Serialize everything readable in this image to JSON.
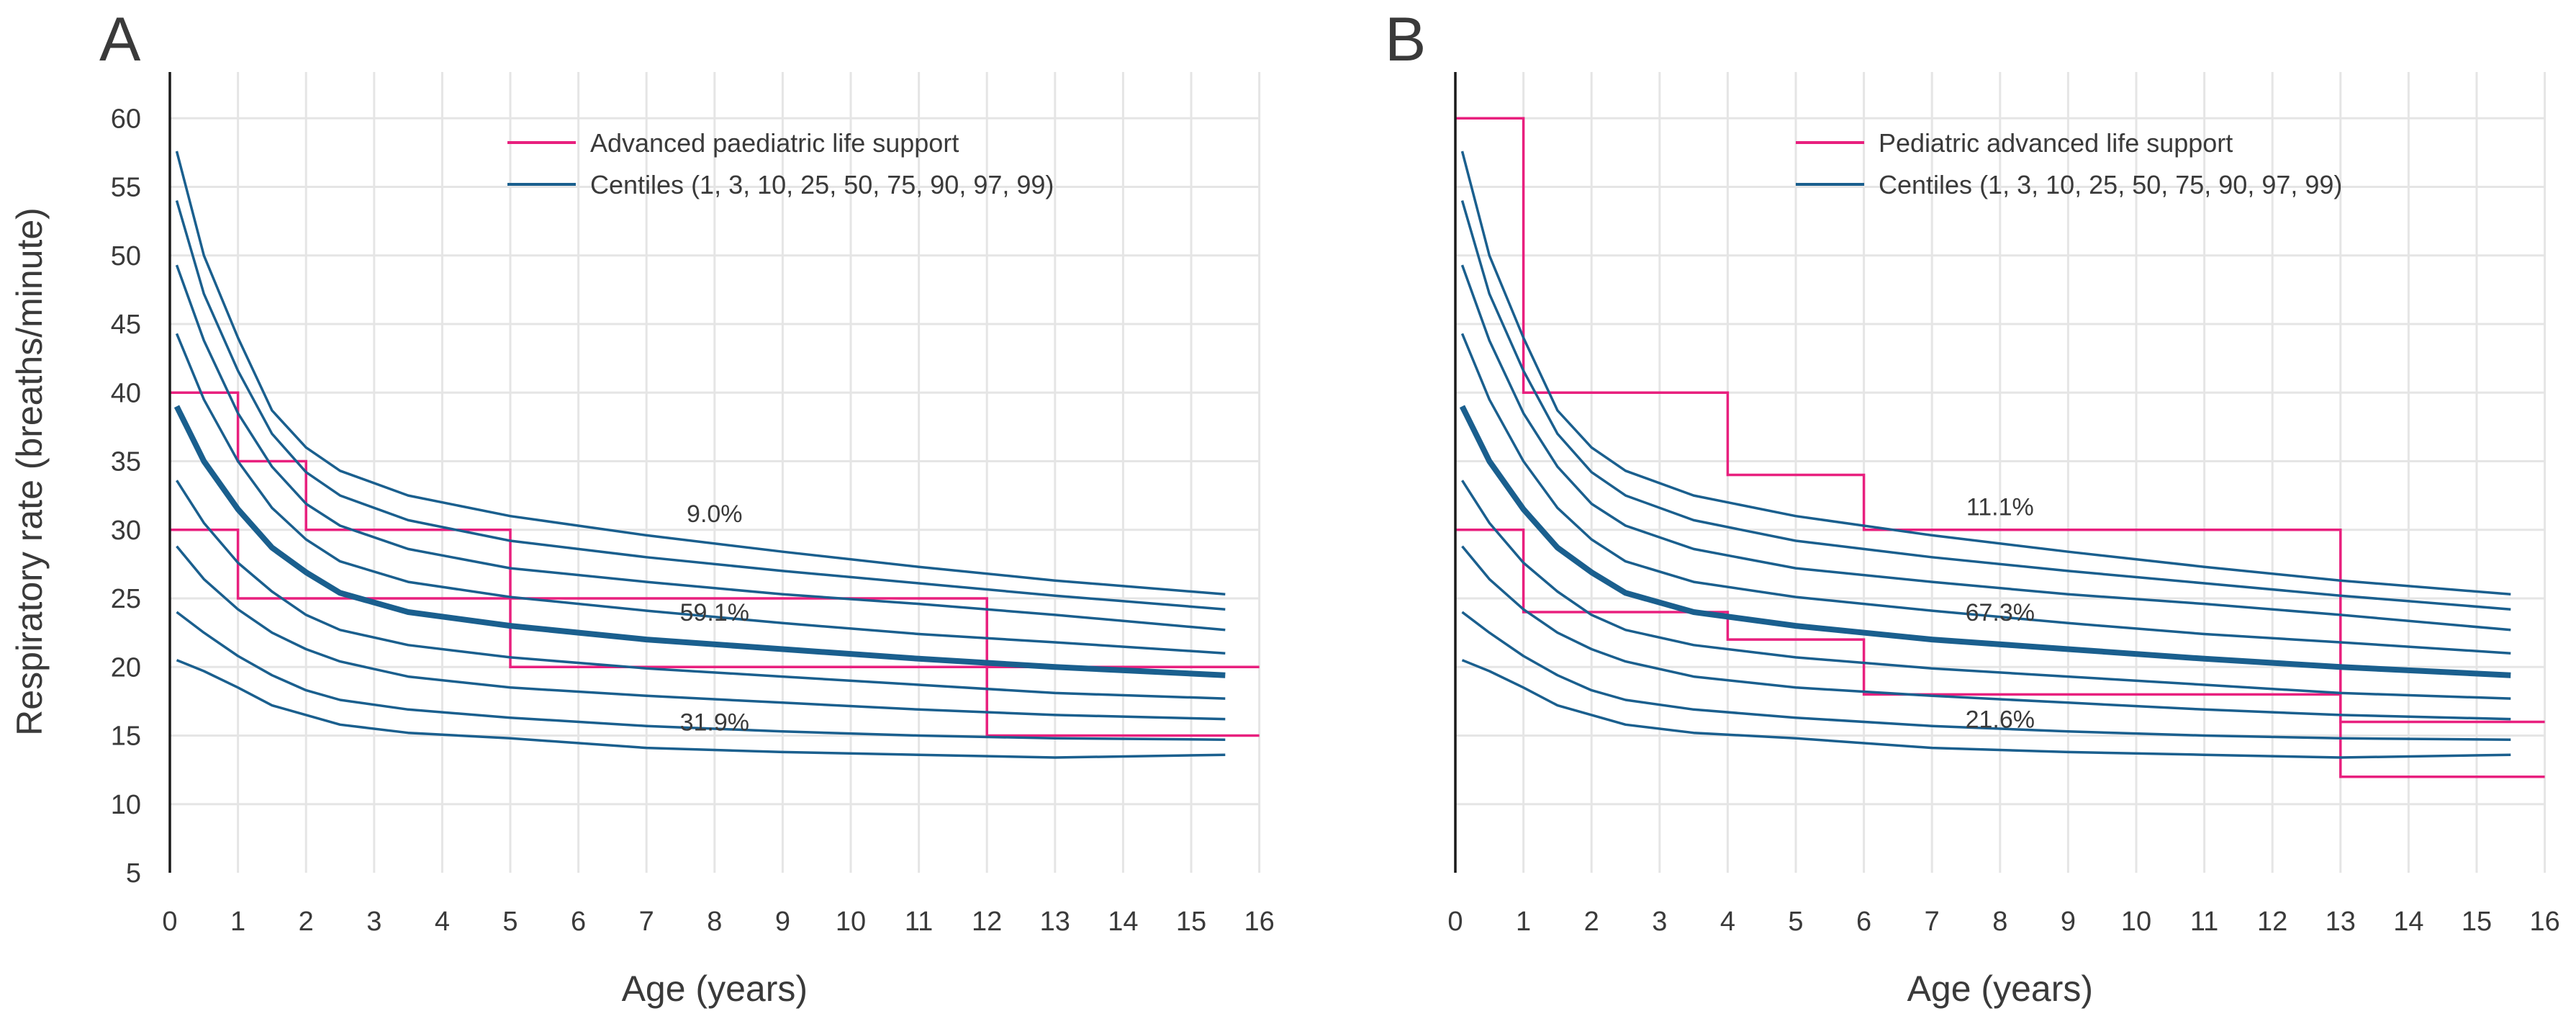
{
  "y_axis_label": "Respiratory rate (breaths/minute)",
  "chart_data": [
    {
      "type": "line",
      "panel_label": "A",
      "xlabel": "Age (years)",
      "ylabel": "Respiratory rate (breaths/minute)",
      "xlim": [
        0,
        16
      ],
      "ylim": [
        5,
        62
      ],
      "x_ticks": [
        "0",
        "1",
        "2",
        "3",
        "4",
        "5",
        "6",
        "7",
        "8",
        "9",
        "10",
        "11",
        "12",
        "13",
        "14",
        "15",
        "16"
      ],
      "y_ticks": [
        "5",
        "10",
        "15",
        "20",
        "25",
        "30",
        "35",
        "40",
        "45",
        "50",
        "55",
        "60"
      ],
      "grid": true,
      "legend_position": "top-right",
      "legend": [
        {
          "label": "Advanced paediatric life support",
          "color": "#e8207e"
        },
        {
          "label": "Centiles (1, 3, 10, 25, 50, 75, 90, 97, 99)",
          "color": "#1a5f8e"
        }
      ],
      "annotations": [
        {
          "text": "9.0%",
          "x": 8.0,
          "y": 31.2
        },
        {
          "text": "59.1%",
          "x": 8.0,
          "y": 24.0
        },
        {
          "text": "31.9%",
          "x": 8.0,
          "y": 16.0
        }
      ],
      "reference_ranges": [
        {
          "name": "upper",
          "color": "#e8207e",
          "x": [
            0,
            1,
            1,
            2,
            2,
            5,
            5,
            12,
            12,
            16
          ],
          "y": [
            40,
            40,
            35,
            35,
            30,
            30,
            25,
            25,
            20,
            20
          ]
        },
        {
          "name": "lower",
          "color": "#e8207e",
          "x": [
            0,
            1,
            1,
            5,
            5,
            12,
            12,
            16
          ],
          "y": [
            30,
            30,
            25,
            25,
            20,
            20,
            15,
            15
          ]
        }
      ]
    },
    {
      "type": "line",
      "panel_label": "B",
      "xlabel": "Age (years)",
      "ylabel": "",
      "xlim": [
        0,
        16
      ],
      "ylim": [
        5,
        62
      ],
      "x_ticks": [
        "0",
        "1",
        "2",
        "3",
        "4",
        "5",
        "6",
        "7",
        "8",
        "9",
        "10",
        "11",
        "12",
        "13",
        "14",
        "15",
        "16"
      ],
      "y_ticks": [],
      "grid": true,
      "legend_position": "top-right",
      "legend": [
        {
          "label": "Pediatric advanced life support",
          "color": "#e8207e"
        },
        {
          "label": "Centiles (1, 3, 10, 25, 50, 75, 90, 97, 99)",
          "color": "#1a5f8e"
        }
      ],
      "annotations": [
        {
          "text": "11.1%",
          "x": 8.0,
          "y": 31.7
        },
        {
          "text": "67.3%",
          "x": 8.0,
          "y": 24.0
        },
        {
          "text": "21.6%",
          "x": 8.0,
          "y": 16.2
        }
      ],
      "reference_ranges": [
        {
          "name": "upper",
          "color": "#e8207e",
          "x": [
            0,
            1,
            1,
            4,
            4,
            6,
            6,
            13,
            13,
            16
          ],
          "y": [
            60,
            60,
            40,
            40,
            34,
            34,
            30,
            30,
            16,
            16
          ]
        },
        {
          "name": "lower",
          "color": "#e8207e",
          "x": [
            0,
            1,
            1,
            4,
            4,
            6,
            6,
            13,
            13,
            16
          ],
          "y": [
            30,
            30,
            24,
            24,
            22,
            22,
            18,
            18,
            12,
            12
          ]
        }
      ]
    }
  ],
  "centiles": {
    "color": "#1a5f8e",
    "x": [
      0.1,
      0.5,
      1,
      1.5,
      2,
      2.5,
      3.5,
      5,
      7,
      9,
      11,
      13,
      15.5
    ],
    "series": [
      {
        "name": "1st",
        "values": [
          20.5,
          19.7,
          18.5,
          17.2,
          16.5,
          15.8,
          15.2,
          14.8,
          14.1,
          13.8,
          13.6,
          13.4,
          13.6
        ]
      },
      {
        "name": "3rd",
        "values": [
          24.0,
          22.5,
          20.8,
          19.4,
          18.3,
          17.6,
          16.9,
          16.3,
          15.7,
          15.3,
          15.0,
          14.8,
          14.7
        ]
      },
      {
        "name": "10th",
        "values": [
          28.8,
          26.4,
          24.2,
          22.5,
          21.3,
          20.4,
          19.3,
          18.5,
          17.9,
          17.4,
          16.9,
          16.5,
          16.2
        ]
      },
      {
        "name": "25th",
        "values": [
          33.6,
          30.5,
          27.6,
          25.5,
          23.8,
          22.7,
          21.6,
          20.7,
          19.9,
          19.3,
          18.7,
          18.1,
          17.7
        ]
      },
      {
        "name": "50th",
        "values": [
          39.0,
          35.0,
          31.5,
          28.7,
          26.9,
          25.4,
          24.0,
          23.0,
          22.0,
          21.3,
          20.6,
          20.0,
          19.4
        ]
      },
      {
        "name": "75th",
        "values": [
          44.3,
          39.5,
          35.0,
          31.6,
          29.3,
          27.7,
          26.2,
          25.1,
          24.1,
          23.2,
          22.4,
          21.8,
          21.0
        ]
      },
      {
        "name": "90th",
        "values": [
          49.3,
          43.8,
          38.5,
          34.6,
          31.9,
          30.3,
          28.6,
          27.2,
          26.2,
          25.3,
          24.6,
          23.8,
          22.7
        ]
      },
      {
        "name": "97th",
        "values": [
          54.0,
          47.2,
          41.6,
          37.0,
          34.2,
          32.5,
          30.7,
          29.2,
          28.0,
          27.0,
          26.1,
          25.2,
          24.2
        ]
      },
      {
        "name": "99th",
        "values": [
          57.6,
          50.0,
          44.0,
          38.7,
          36.0,
          34.3,
          32.5,
          31.0,
          29.6,
          28.4,
          27.3,
          26.3,
          25.3
        ]
      }
    ]
  }
}
